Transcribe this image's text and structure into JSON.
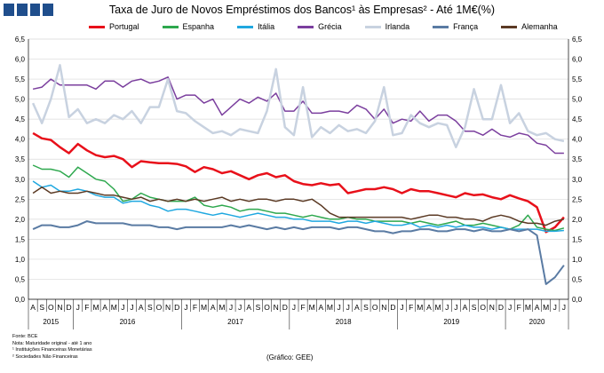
{
  "header": {
    "title": "Taxa de Juro de Novos Empréstimos dos Bancos¹ às Empresas² -  Até 1M€(%)"
  },
  "notes": {
    "source": "Fonte: BCE",
    "note": "Nota: Maturidade original - até 1 ano",
    "footnote1": "¹ Instituições Financeiras Monetárias",
    "footnote2": "² Sociedades Não Financeiras"
  },
  "credit": "(Gráfico: GEE)",
  "chart_data": {
    "type": "line",
    "title": "Taxa de Juro de Novos Empréstimos dos Bancos¹ às Empresas² -  Até 1M€(%)",
    "ylim": [
      0,
      6.5
    ],
    "yticks": [
      "0,0",
      "0,5",
      "1,0",
      "1,5",
      "2,0",
      "2,5",
      "3,0",
      "3,5",
      "4,0",
      "4,5",
      "5,0",
      "5,5",
      "6,0",
      "6,5"
    ],
    "grid": "horizontal",
    "legend_position": "top",
    "categories": [
      "A",
      "S",
      "O",
      "N",
      "D",
      "J",
      "F",
      "M",
      "A",
      "M",
      "J",
      "J",
      "A",
      "S",
      "O",
      "N",
      "D",
      "J",
      "F",
      "M",
      "A",
      "M",
      "J",
      "J",
      "A",
      "S",
      "O",
      "N",
      "D",
      "J",
      "F",
      "M",
      "A",
      "M",
      "J",
      "J",
      "A",
      "S",
      "O",
      "N",
      "D",
      "J",
      "F",
      "M",
      "A",
      "M",
      "J",
      "J",
      "A",
      "S",
      "O",
      "N",
      "D",
      "J",
      "F",
      "M",
      "A",
      "M",
      "J",
      "J"
    ],
    "year_labels": [
      {
        "label": "2015",
        "start": 0,
        "end": 4
      },
      {
        "label": "2016",
        "start": 5,
        "end": 16
      },
      {
        "label": "2017",
        "start": 17,
        "end": 28
      },
      {
        "label": "2018",
        "start": 29,
        "end": 40
      },
      {
        "label": "2019",
        "start": 41,
        "end": 52
      },
      {
        "label": "2020",
        "start": 53,
        "end": 59
      }
    ],
    "series": [
      {
        "name": "Portugal",
        "color": "#e8101a",
        "width": 2.5,
        "values": [
          4.15,
          4.02,
          3.98,
          3.8,
          3.65,
          3.88,
          3.72,
          3.6,
          3.55,
          3.58,
          3.5,
          3.3,
          3.45,
          3.42,
          3.4,
          3.4,
          3.38,
          3.32,
          3.18,
          3.3,
          3.25,
          3.15,
          3.2,
          3.1,
          3.0,
          3.1,
          3.15,
          3.05,
          3.1,
          2.95,
          2.88,
          2.85,
          2.9,
          2.85,
          2.88,
          2.65,
          2.7,
          2.75,
          2.75,
          2.8,
          2.75,
          2.65,
          2.75,
          2.7,
          2.7,
          2.65,
          2.6,
          2.55,
          2.65,
          2.6,
          2.62,
          2.55,
          2.5,
          2.6,
          2.52,
          2.45,
          2.3,
          1.68,
          1.8,
          2.05
        ]
      },
      {
        "name": "Espanha",
        "color": "#2ea84e",
        "width": 1.5,
        "values": [
          3.35,
          3.25,
          3.25,
          3.2,
          3.05,
          3.3,
          3.15,
          3.0,
          2.95,
          2.75,
          2.45,
          2.5,
          2.65,
          2.55,
          2.5,
          2.45,
          2.45,
          2.45,
          2.55,
          2.35,
          2.3,
          2.35,
          2.3,
          2.2,
          2.25,
          2.25,
          2.2,
          2.15,
          2.15,
          2.1,
          2.05,
          2.1,
          2.05,
          2.0,
          2.0,
          2.05,
          2.0,
          2.0,
          1.95,
          1.95,
          1.95,
          1.95,
          1.9,
          1.95,
          1.9,
          1.85,
          1.9,
          1.95,
          1.85,
          1.85,
          1.9,
          1.85,
          1.8,
          1.75,
          1.85,
          2.1,
          1.8,
          1.75,
          1.72,
          1.78
        ]
      },
      {
        "name": "Itália",
        "color": "#20a8e0",
        "width": 1.5,
        "values": [
          2.95,
          2.8,
          2.85,
          2.7,
          2.7,
          2.75,
          2.7,
          2.6,
          2.55,
          2.55,
          2.4,
          2.45,
          2.45,
          2.35,
          2.3,
          2.2,
          2.25,
          2.25,
          2.2,
          2.15,
          2.1,
          2.15,
          2.1,
          2.05,
          2.1,
          2.15,
          2.1,
          2.05,
          2.05,
          2.0,
          2.0,
          1.95,
          1.95,
          1.95,
          1.9,
          1.95,
          1.95,
          1.9,
          1.95,
          1.9,
          1.85,
          1.85,
          1.9,
          1.8,
          1.85,
          1.8,
          1.85,
          1.8,
          1.85,
          1.8,
          1.8,
          1.75,
          1.8,
          1.75,
          1.75,
          1.75,
          1.75,
          1.7,
          1.7,
          1.72
        ]
      },
      {
        "name": "Grécia",
        "color": "#7b3f9e",
        "width": 1.5,
        "values": [
          5.25,
          5.3,
          5.5,
          5.35,
          5.35,
          5.35,
          5.35,
          5.25,
          5.45,
          5.45,
          5.3,
          5.45,
          5.5,
          5.4,
          5.45,
          5.55,
          5.0,
          5.1,
          5.1,
          4.9,
          5.0,
          4.6,
          4.8,
          5.0,
          4.9,
          5.05,
          4.95,
          5.15,
          4.7,
          4.7,
          4.95,
          4.65,
          4.65,
          4.7,
          4.7,
          4.65,
          4.85,
          4.75,
          4.5,
          4.75,
          4.4,
          4.5,
          4.45,
          4.7,
          4.45,
          4.6,
          4.6,
          4.45,
          4.2,
          4.2,
          4.1,
          4.25,
          4.1,
          4.05,
          4.15,
          4.1,
          3.9,
          3.85,
          3.65,
          3.65
        ]
      },
      {
        "name": "Irlanda",
        "color": "#c8d2e0",
        "width": 2.5,
        "values": [
          4.9,
          4.4,
          5.0,
          5.85,
          4.55,
          4.75,
          4.4,
          4.5,
          4.4,
          4.6,
          4.5,
          4.7,
          4.4,
          4.8,
          4.8,
          5.5,
          4.7,
          4.65,
          4.45,
          4.3,
          4.15,
          4.2,
          4.1,
          4.25,
          4.2,
          4.15,
          4.7,
          5.75,
          4.3,
          4.1,
          5.3,
          4.05,
          4.3,
          4.15,
          4.35,
          4.2,
          4.25,
          4.15,
          4.45,
          5.3,
          4.1,
          4.15,
          4.6,
          4.4,
          4.3,
          4.4,
          4.35,
          3.8,
          4.3,
          5.25,
          4.5,
          4.5,
          5.35,
          4.4,
          4.65,
          4.2,
          4.1,
          4.15,
          4.0,
          3.95
        ]
      },
      {
        "name": "França",
        "color": "#5a7ba3",
        "width": 2.0,
        "values": [
          1.75,
          1.85,
          1.85,
          1.8,
          1.8,
          1.85,
          1.95,
          1.9,
          1.9,
          1.9,
          1.9,
          1.85,
          1.85,
          1.85,
          1.8,
          1.8,
          1.75,
          1.8,
          1.8,
          1.8,
          1.8,
          1.8,
          1.85,
          1.8,
          1.85,
          1.8,
          1.75,
          1.8,
          1.75,
          1.8,
          1.75,
          1.8,
          1.8,
          1.8,
          1.75,
          1.8,
          1.8,
          1.75,
          1.7,
          1.7,
          1.65,
          1.7,
          1.7,
          1.75,
          1.75,
          1.7,
          1.7,
          1.75,
          1.75,
          1.7,
          1.75,
          1.7,
          1.7,
          1.75,
          1.7,
          1.75,
          1.6,
          0.38,
          0.55,
          0.85
        ]
      },
      {
        "name": "Alemanha",
        "color": "#5b3a24",
        "width": 1.5,
        "values": [
          2.65,
          2.8,
          2.65,
          2.7,
          2.65,
          2.65,
          2.7,
          2.65,
          2.6,
          2.6,
          2.55,
          2.5,
          2.55,
          2.45,
          2.5,
          2.45,
          2.5,
          2.45,
          2.5,
          2.45,
          2.5,
          2.55,
          2.45,
          2.5,
          2.45,
          2.5,
          2.5,
          2.45,
          2.5,
          2.5,
          2.45,
          2.5,
          2.35,
          2.15,
          2.05,
          2.05,
          2.05,
          2.05,
          2.05,
          2.05,
          2.05,
          2.05,
          2.0,
          2.05,
          2.1,
          2.1,
          2.05,
          2.05,
          2.0,
          2.0,
          1.95,
          2.05,
          2.1,
          2.05,
          1.95,
          1.9,
          1.9,
          1.85,
          1.95,
          2.0
        ]
      }
    ]
  }
}
